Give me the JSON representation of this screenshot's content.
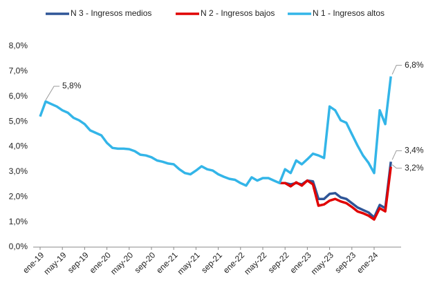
{
  "chart_data": {
    "type": "line",
    "categories": [
      "ene-19",
      null,
      null,
      null,
      "may-19",
      null,
      null,
      null,
      "sep-19",
      null,
      null,
      null,
      "ene-20",
      null,
      null,
      null,
      "may-20",
      null,
      null,
      null,
      "sep-20",
      null,
      null,
      null,
      "ene-21",
      null,
      null,
      null,
      "may-21",
      null,
      null,
      null,
      "sep-21",
      null,
      null,
      null,
      "ene-22",
      null,
      null,
      null,
      "may-22",
      null,
      null,
      null,
      "sep-22",
      null,
      null,
      null,
      "ene-23",
      null,
      null,
      null,
      "may-23",
      null,
      null,
      null,
      "sep-23",
      null,
      null,
      null,
      "ene-24",
      null,
      null,
      null
    ],
    "series": [
      {
        "name": "N 3 - Ingresos medios",
        "color": "#2f5597",
        "values": [
          null,
          null,
          null,
          null,
          null,
          null,
          null,
          null,
          null,
          null,
          null,
          null,
          null,
          null,
          null,
          null,
          null,
          null,
          null,
          null,
          null,
          null,
          null,
          null,
          null,
          null,
          null,
          null,
          null,
          null,
          null,
          null,
          null,
          null,
          null,
          null,
          null,
          null,
          null,
          null,
          null,
          null,
          null,
          2.55,
          2.55,
          2.5,
          2.55,
          2.5,
          2.65,
          2.62,
          1.92,
          1.92,
          2.12,
          2.15,
          1.98,
          1.92,
          1.75,
          1.58,
          1.48,
          1.38,
          1.18,
          1.68,
          1.55,
          3.4
        ],
        "value_labels": [
          null,
          null,
          null,
          null,
          null,
          null,
          null,
          null,
          null,
          null,
          null,
          null,
          null,
          null,
          null,
          null,
          null,
          null,
          null,
          null,
          null,
          null,
          null,
          null,
          null,
          null,
          null,
          null,
          null,
          null,
          null,
          null,
          null,
          null,
          null,
          null,
          null,
          null,
          null,
          null,
          null,
          null,
          null,
          null,
          null,
          null,
          null,
          null,
          null,
          null,
          null,
          null,
          null,
          null,
          null,
          null,
          null,
          null,
          null,
          null,
          null,
          null,
          null,
          "3,4%"
        ]
      },
      {
        "name": "N 2 - Ingresos bajos",
        "color": "#e00000",
        "values": [
          null,
          null,
          null,
          null,
          null,
          null,
          null,
          null,
          null,
          null,
          null,
          null,
          null,
          null,
          null,
          null,
          null,
          null,
          null,
          null,
          null,
          null,
          null,
          null,
          null,
          null,
          null,
          null,
          null,
          null,
          null,
          null,
          null,
          null,
          null,
          null,
          null,
          null,
          null,
          null,
          null,
          null,
          null,
          2.55,
          2.55,
          2.42,
          2.58,
          2.45,
          2.65,
          2.5,
          1.65,
          1.7,
          1.85,
          1.92,
          1.82,
          1.75,
          1.6,
          1.42,
          1.35,
          1.25,
          1.1,
          1.55,
          1.42,
          3.2
        ],
        "value_labels": [
          null,
          null,
          null,
          null,
          null,
          null,
          null,
          null,
          null,
          null,
          null,
          null,
          null,
          null,
          null,
          null,
          null,
          null,
          null,
          null,
          null,
          null,
          null,
          null,
          null,
          null,
          null,
          null,
          null,
          null,
          null,
          null,
          null,
          null,
          null,
          null,
          null,
          null,
          null,
          null,
          null,
          null,
          null,
          null,
          null,
          null,
          null,
          null,
          null,
          null,
          null,
          null,
          null,
          null,
          null,
          null,
          null,
          null,
          null,
          null,
          null,
          null,
          null,
          "3,2%"
        ]
      },
      {
        "name": "N 1 - Ingresos altos",
        "color": "#33b5e8",
        "values": [
          5.2,
          5.8,
          5.7,
          5.6,
          5.45,
          5.35,
          5.15,
          5.05,
          4.9,
          4.65,
          4.55,
          4.45,
          4.15,
          3.95,
          3.92,
          3.92,
          3.9,
          3.82,
          3.68,
          3.65,
          3.58,
          3.45,
          3.4,
          3.33,
          3.3,
          3.1,
          2.95,
          2.9,
          3.05,
          3.22,
          3.1,
          3.05,
          2.9,
          2.8,
          2.72,
          2.68,
          2.55,
          2.45,
          2.78,
          2.65,
          2.75,
          2.75,
          2.65,
          2.55,
          3.1,
          2.95,
          3.45,
          3.3,
          3.5,
          3.72,
          3.65,
          3.55,
          5.6,
          5.45,
          5.05,
          4.95,
          4.5,
          4.05,
          3.65,
          3.35,
          2.95,
          5.45,
          4.9,
          6.8
        ],
        "value_labels": [
          null,
          "5,8%",
          null,
          null,
          null,
          null,
          null,
          null,
          null,
          null,
          null,
          null,
          null,
          null,
          null,
          null,
          null,
          null,
          null,
          null,
          null,
          null,
          null,
          null,
          null,
          null,
          null,
          null,
          null,
          null,
          null,
          null,
          null,
          null,
          null,
          null,
          null,
          null,
          null,
          null,
          null,
          null,
          null,
          null,
          null,
          null,
          null,
          null,
          null,
          null,
          null,
          null,
          null,
          null,
          null,
          null,
          null,
          null,
          null,
          null,
          null,
          null,
          null,
          "6,8%"
        ]
      }
    ],
    "ylim": [
      0,
      8
    ],
    "yticks": [
      {
        "value": 0,
        "label": "0,0%"
      },
      {
        "value": 1,
        "label": "1,0%"
      },
      {
        "value": 2,
        "label": "2,0%"
      },
      {
        "value": 3,
        "label": "3,0%"
      },
      {
        "value": 4,
        "label": "4,0%"
      },
      {
        "value": 5,
        "label": "5,0%"
      },
      {
        "value": 6,
        "label": "6,0%"
      },
      {
        "value": 7,
        "label": "7,0%"
      },
      {
        "value": 8,
        "label": "8,0%"
      }
    ],
    "grid": false,
    "legend": "top"
  }
}
